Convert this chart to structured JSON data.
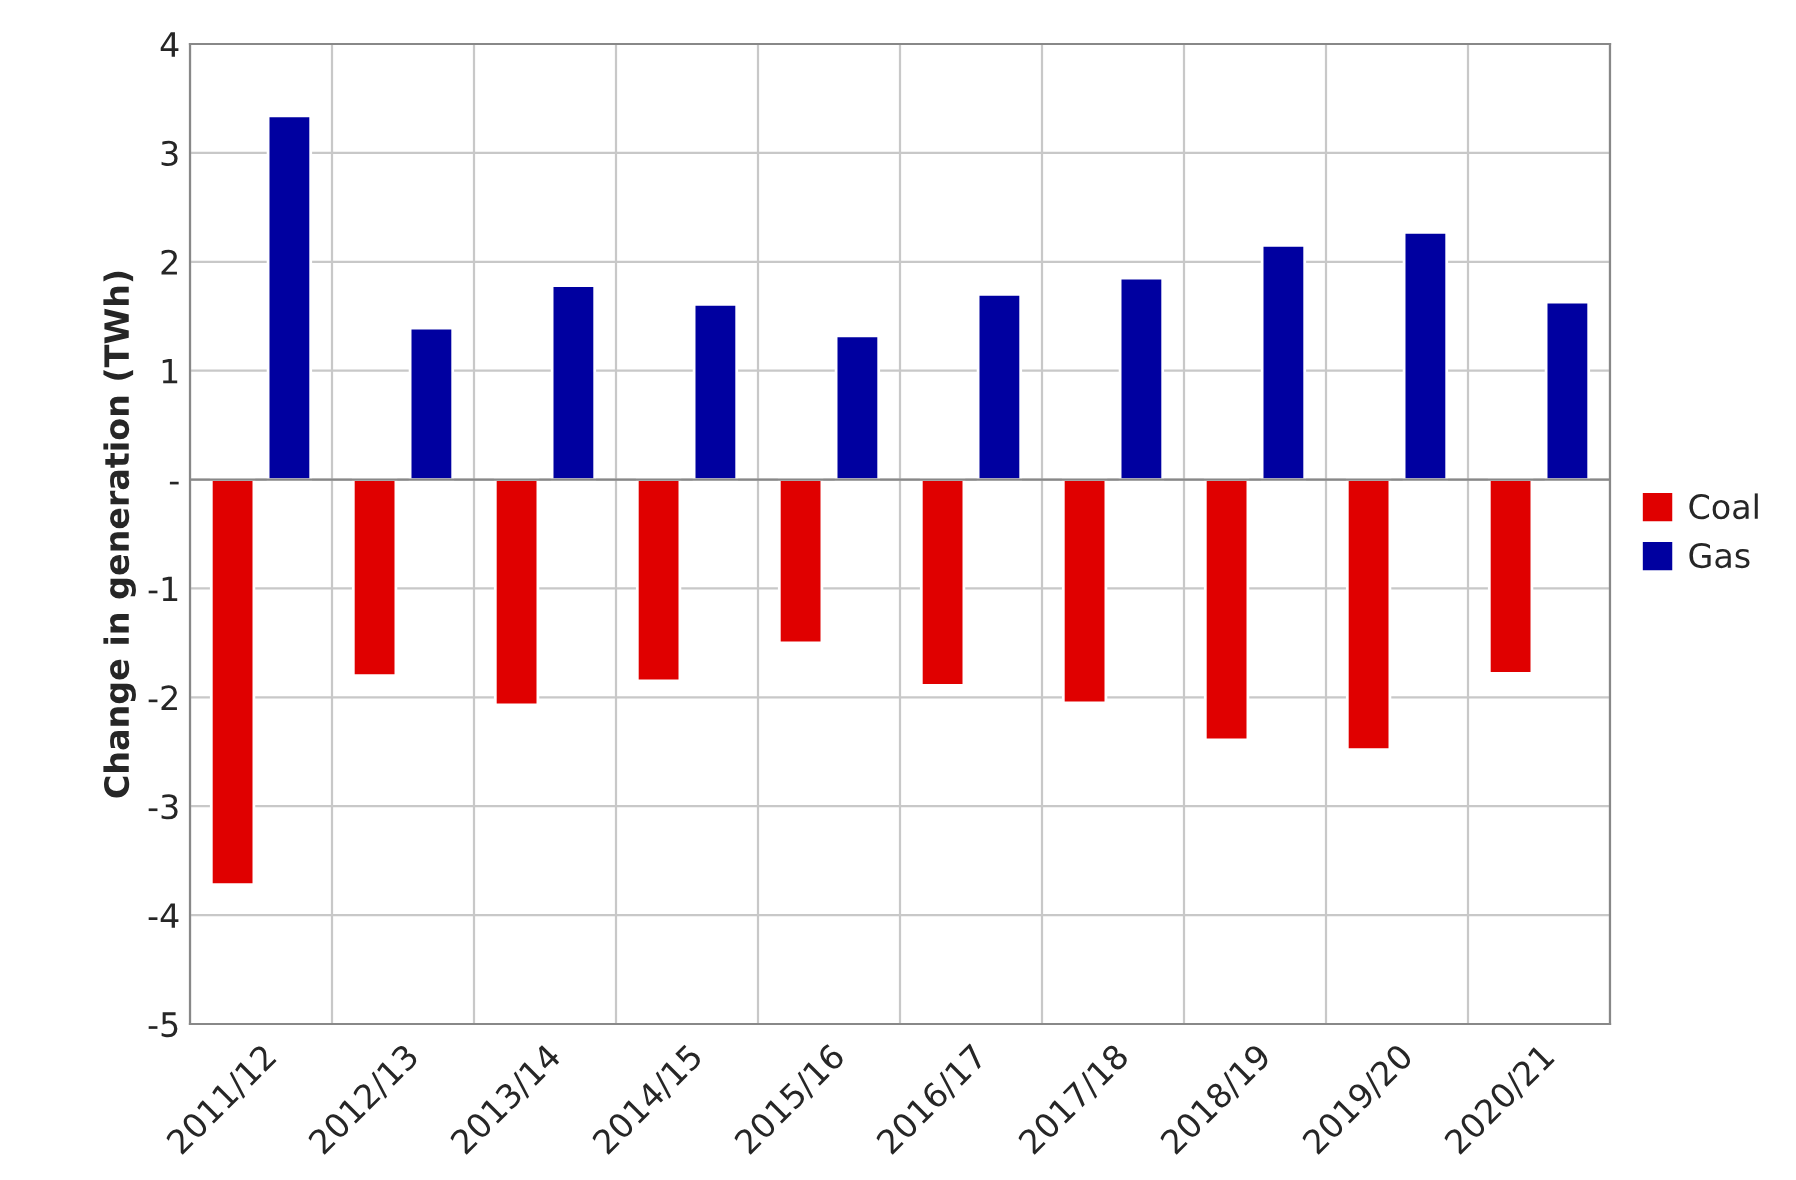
{
  "chart_data": {
    "type": "bar",
    "ylabel": "Change in generation (TWh)",
    "categories": [
      "2011/12",
      "2012/13",
      "2013/14",
      "2014/15",
      "2015/16",
      "2016/17",
      "2017/18",
      "2018/19",
      "2019/20",
      "2020/21"
    ],
    "series": [
      {
        "name": "Coal",
        "color": "#e00000",
        "values": [
          -3.72,
          -1.8,
          -2.07,
          -1.85,
          -1.5,
          -1.89,
          -2.05,
          -2.39,
          -2.48,
          -1.78
        ]
      },
      {
        "name": "Gas",
        "color": "#0000a0",
        "values": [
          3.34,
          1.39,
          1.78,
          1.61,
          1.32,
          1.7,
          1.85,
          2.15,
          2.27,
          1.63
        ]
      }
    ],
    "ylim": [
      -5,
      4
    ],
    "yticks": [
      -5,
      -4,
      -3,
      -2,
      -1,
      {
        "value": 0,
        "label": "-"
      },
      1,
      2,
      3,
      4
    ],
    "grid": true,
    "legend": "right"
  }
}
